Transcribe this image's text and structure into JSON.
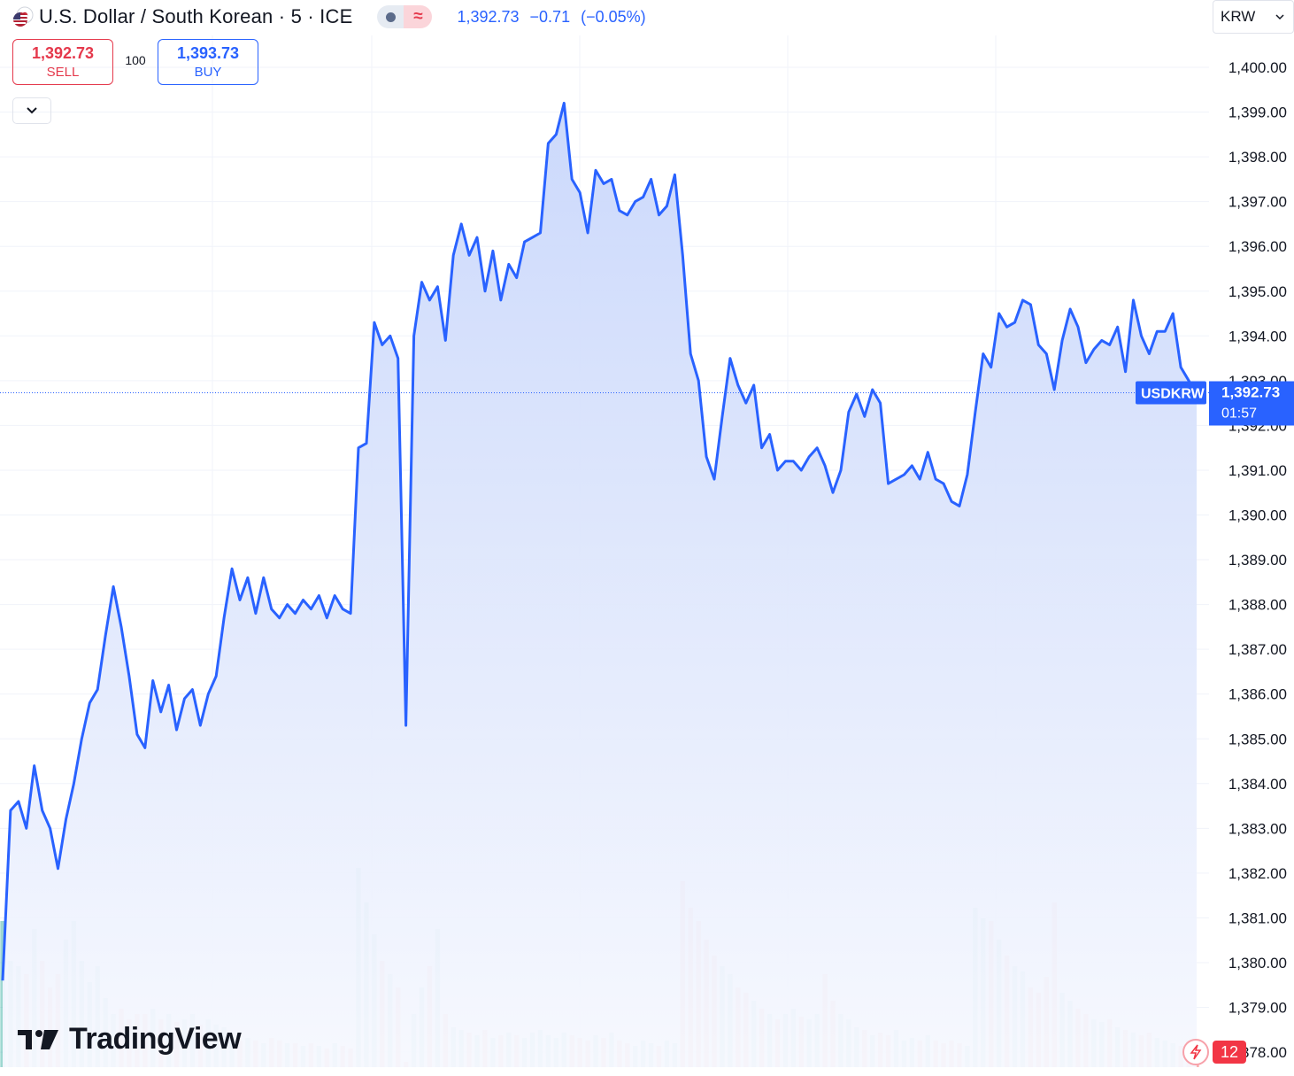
{
  "header": {
    "title": "U.S. Dollar / South Korean · 5 · ICE",
    "flag_icon": "us-korea-flag-icon",
    "status_icons": [
      "market-status-dot-icon",
      "delayed-data-wave-icon"
    ],
    "wave_glyph": "≈",
    "last_price": "1,392.73",
    "change": "−0.71",
    "change_pct": "(−0.05%)"
  },
  "trade": {
    "sell_price": "1,392.73",
    "sell_label": "SELL",
    "spread": "100",
    "buy_price": "1,393.73",
    "buy_label": "BUY"
  },
  "currency_select": {
    "value": "KRW"
  },
  "price_label": {
    "symbol": "USDKRW",
    "price": "1,392.73",
    "countdown": "01:57"
  },
  "branding": {
    "logo_text": "TradingView"
  },
  "notifications": {
    "count": "12"
  },
  "colors": {
    "line": "#2962ff",
    "area_top": "#c9d7fb",
    "area_bottom": "#f6f8fe",
    "volume_up": "#26a69a",
    "volume_down": "#ef5350",
    "sell": "#e5394c",
    "buy": "#2962ff"
  },
  "chart_data": {
    "type": "area",
    "series": [
      {
        "name": "USDKRW",
        "values": [
          1379.6,
          1383.4,
          1383.6,
          1383.0,
          1384.4,
          1383.4,
          1383.0,
          1382.1,
          1383.2,
          1384.0,
          1385.0,
          1385.8,
          1386.1,
          1387.3,
          1388.4,
          1387.5,
          1386.4,
          1385.1,
          1384.8,
          1386.3,
          1385.6,
          1386.2,
          1385.2,
          1385.9,
          1386.1,
          1385.3,
          1386.0,
          1386.4,
          1387.7,
          1388.8,
          1388.1,
          1388.6,
          1387.8,
          1388.6,
          1387.9,
          1387.7,
          1388.0,
          1387.8,
          1388.1,
          1387.9,
          1388.2,
          1387.7,
          1388.2,
          1387.9,
          1387.8,
          1391.5,
          1391.6,
          1394.3,
          1393.8,
          1394.0,
          1393.5,
          1385.3,
          1394.0,
          1395.2,
          1394.8,
          1395.1,
          1393.9,
          1395.8,
          1396.5,
          1395.8,
          1396.2,
          1395.0,
          1395.9,
          1394.8,
          1395.6,
          1395.3,
          1396.1,
          1396.2,
          1396.3,
          1398.3,
          1398.5,
          1399.2,
          1397.5,
          1397.2,
          1396.3,
          1397.7,
          1397.4,
          1397.5,
          1396.8,
          1396.7,
          1397.0,
          1397.1,
          1397.5,
          1396.7,
          1396.9,
          1397.6,
          1395.8,
          1393.6,
          1393.0,
          1391.3,
          1390.8,
          1392.2,
          1393.5,
          1392.9,
          1392.5,
          1392.9,
          1391.5,
          1391.8,
          1391.0,
          1391.2,
          1391.2,
          1391.0,
          1391.3,
          1391.5,
          1391.1,
          1390.5,
          1391.0,
          1392.3,
          1392.7,
          1392.2,
          1392.8,
          1392.5,
          1390.7,
          1390.8,
          1390.9,
          1391.1,
          1390.8,
          1391.4,
          1390.8,
          1390.7,
          1390.3,
          1390.2,
          1390.9,
          1392.3,
          1393.6,
          1393.3,
          1394.5,
          1394.2,
          1394.3,
          1394.8,
          1394.7,
          1393.8,
          1393.6,
          1392.8,
          1393.9,
          1394.6,
          1394.2,
          1393.4,
          1393.7,
          1393.9,
          1393.8,
          1394.2,
          1393.2,
          1394.8,
          1394.0,
          1393.6,
          1394.1,
          1394.1,
          1394.5,
          1393.3,
          1393.0,
          1392.7
        ]
      },
      {
        "name": "Volume",
        "values": [
          0.55,
          0.4,
          0.38,
          0.35,
          0.52,
          0.4,
          0.3,
          0.35,
          0.48,
          0.55,
          0.4,
          0.32,
          0.38,
          0.26,
          0.2,
          0.22,
          0.18,
          0.2,
          0.2,
          0.22,
          0.18,
          0.2,
          0.17,
          0.18,
          0.2,
          0.16,
          0.18,
          0.16,
          0.15,
          0.12,
          0.1,
          0.11,
          0.1,
          0.09,
          0.11,
          0.1,
          0.09,
          0.09,
          0.08,
          0.09,
          0.08,
          0.07,
          0.09,
          0.08,
          0.07,
          0.75,
          0.62,
          0.5,
          0.4,
          0.35,
          0.3,
          0.02,
          0.2,
          0.3,
          0.38,
          0.52,
          0.2,
          0.15,
          0.14,
          0.13,
          0.12,
          0.14,
          0.11,
          0.12,
          0.13,
          0.12,
          0.11,
          0.13,
          0.14,
          0.12,
          0.11,
          0.13,
          0.12,
          0.11,
          0.1,
          0.12,
          0.11,
          0.13,
          0.1,
          0.09,
          0.08,
          0.1,
          0.09,
          0.08,
          0.1,
          0.09,
          0.7,
          0.6,
          0.55,
          0.48,
          0.42,
          0.38,
          0.35,
          0.3,
          0.28,
          0.25,
          0.22,
          0.2,
          0.18,
          0.2,
          0.22,
          0.19,
          0.18,
          0.2,
          0.35,
          0.25,
          0.2,
          0.18,
          0.15,
          0.14,
          0.12,
          0.13,
          0.12,
          0.14,
          0.1,
          0.11,
          0.1,
          0.12,
          0.1,
          0.09,
          0.1,
          0.09,
          0.08,
          0.6,
          0.56,
          0.55,
          0.48,
          0.42,
          0.38,
          0.36,
          0.3,
          0.28,
          0.34,
          0.62,
          0.28,
          0.25,
          0.22,
          0.2,
          0.18,
          0.17,
          0.18,
          0.15,
          0.14,
          0.13,
          0.12,
          0.13,
          0.11,
          0.1,
          0.09,
          0.08,
          0.1,
          0.09
        ]
      }
    ],
    "y_ticks": [
      "1,400.00",
      "1,399.00",
      "1,398.00",
      "1,397.00",
      "1,396.00",
      "1,395.00",
      "1,394.00",
      "1,393.00",
      "1,392.00",
      "1,391.00",
      "1,390.00",
      "1,389.00",
      "1,388.00",
      "1,387.00",
      "1,386.00",
      "1,385.00",
      "1,384.00",
      "1,383.00",
      "1,382.00",
      "1,381.00",
      "1,380.00",
      "1,379.00",
      "1,378.00"
    ],
    "ylim": [
      1378.0,
      1400.0
    ],
    "current_price": 1392.73,
    "grid": true,
    "legend": "none"
  }
}
